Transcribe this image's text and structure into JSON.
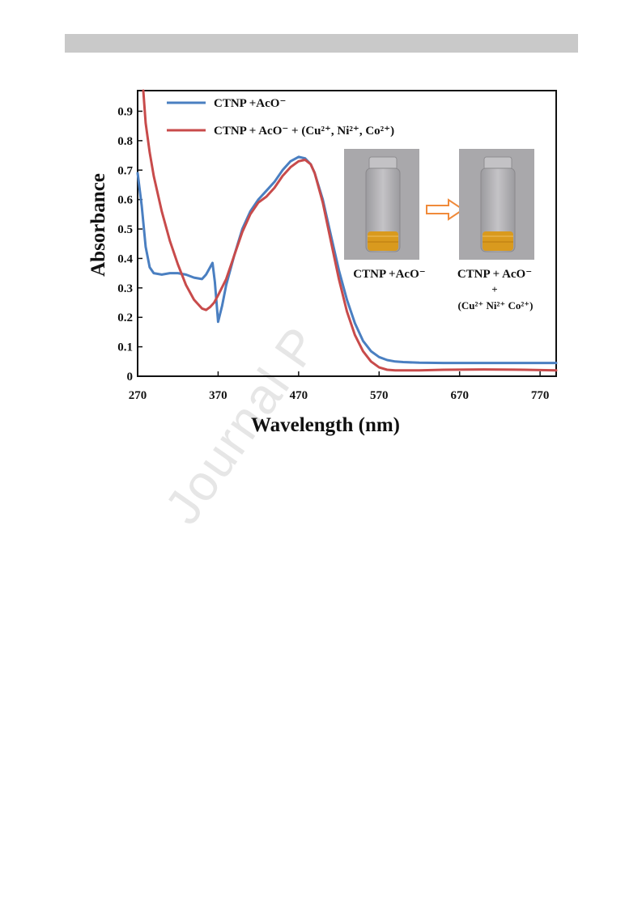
{
  "watermark": {
    "text": "Journal P"
  },
  "chart_data": {
    "type": "line",
    "title": "",
    "xlabel": "Wavelength (nm)",
    "ylabel": "Absorbance",
    "xlim": [
      270,
      790
    ],
    "ylim": [
      0,
      0.97
    ],
    "xticks": [
      270,
      370,
      470,
      570,
      670,
      770
    ],
    "yticks": [
      0,
      0.1,
      0.2,
      0.3,
      0.4,
      0.5,
      0.6,
      0.7,
      0.8,
      0.9
    ],
    "xtick_labels": [
      "270",
      "370",
      "470",
      "570",
      "670",
      "770"
    ],
    "ytick_labels": [
      "0",
      "0.1",
      "0.2",
      "0.3",
      "0.4",
      "0.5",
      "0.6",
      "0.7",
      "0.8",
      "0.9"
    ],
    "grid": false,
    "legend_position": "top-left",
    "series": [
      {
        "name": "CTNP +AcO⁻",
        "color": "#4a7fc1",
        "x": [
          270,
          275,
          280,
          285,
          290,
          300,
          310,
          320,
          330,
          340,
          350,
          355,
          360,
          363,
          366,
          370,
          375,
          380,
          390,
          400,
          410,
          420,
          430,
          440,
          450,
          460,
          470,
          478,
          485,
          490,
          500,
          510,
          520,
          530,
          540,
          550,
          560,
          570,
          580,
          590,
          600,
          620,
          650,
          700,
          750,
          790
        ],
        "y": [
          0.69,
          0.58,
          0.44,
          0.37,
          0.35,
          0.345,
          0.35,
          0.35,
          0.345,
          0.335,
          0.33,
          0.345,
          0.37,
          0.385,
          0.32,
          0.185,
          0.24,
          0.31,
          0.41,
          0.5,
          0.56,
          0.6,
          0.63,
          0.66,
          0.7,
          0.73,
          0.745,
          0.74,
          0.72,
          0.69,
          0.6,
          0.48,
          0.36,
          0.26,
          0.18,
          0.12,
          0.085,
          0.065,
          0.055,
          0.05,
          0.048,
          0.046,
          0.045,
          0.045,
          0.045,
          0.045
        ]
      },
      {
        "name": "CTNP + AcO⁻ + (Cu²⁺, Ni²⁺, Co²⁺)",
        "color": "#c84b4b",
        "x": [
          277,
          280,
          285,
          290,
          300,
          310,
          320,
          330,
          340,
          350,
          355,
          360,
          365,
          370,
          380,
          390,
          400,
          410,
          420,
          430,
          440,
          450,
          460,
          470,
          478,
          485,
          490,
          500,
          510,
          520,
          530,
          540,
          550,
          560,
          570,
          580,
          590,
          600,
          620,
          650,
          700,
          750,
          790
        ],
        "y": [
          0.97,
          0.86,
          0.76,
          0.68,
          0.56,
          0.46,
          0.38,
          0.31,
          0.26,
          0.23,
          0.225,
          0.235,
          0.25,
          0.275,
          0.33,
          0.41,
          0.49,
          0.55,
          0.59,
          0.61,
          0.64,
          0.68,
          0.71,
          0.73,
          0.735,
          0.72,
          0.69,
          0.59,
          0.46,
          0.33,
          0.22,
          0.14,
          0.085,
          0.05,
          0.03,
          0.022,
          0.02,
          0.02,
          0.02,
          0.022,
          0.023,
          0.022,
          0.02
        ]
      }
    ],
    "annotations": {
      "left_caption": "CTNP +AcO⁻",
      "right_caption_line1": "CTNP + AcO⁻",
      "right_caption_line2": "+",
      "right_caption_line3": "(Cu²⁺   Ni²⁺ Co²⁺)"
    },
    "inset_colors": {
      "photo_bg": "#a9a8ab",
      "solution": "#d99a1e",
      "arrow": "#f08a3a"
    }
  }
}
